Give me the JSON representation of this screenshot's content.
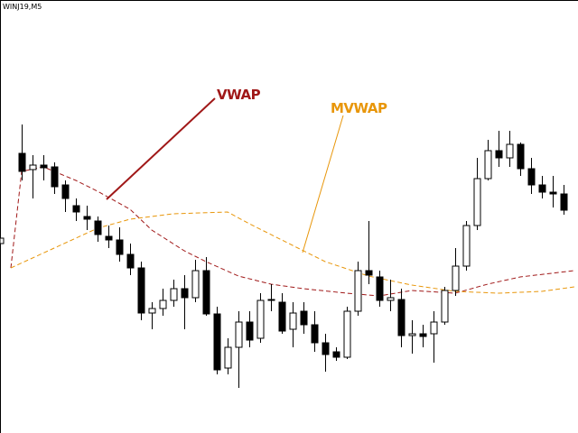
{
  "chart_data": {
    "type": "candlestick",
    "title": "WINJ19,M5",
    "open": [
      310,
      292,
      297,
      295,
      275,
      252,
      240,
      235,
      218,
      214,
      198,
      183,
      133,
      138,
      147,
      160,
      150,
      180,
      132,
      72,
      95,
      123,
      105,
      148,
      145,
      115,
      135,
      120,
      100,
      90,
      84,
      135,
      180,
      173,
      147,
      148,
      108,
      110,
      110,
      123,
      158,
      185,
      230,
      282,
      313,
      305,
      320,
      293,
      275,
      267,
      265
    ],
    "high": [
      342,
      308,
      308,
      300,
      280,
      260,
      252,
      240,
      230,
      228,
      210,
      190,
      145,
      160,
      170,
      175,
      192,
      195,
      140,
      105,
      135,
      135,
      155,
      165,
      155,
      145,
      145,
      135,
      110,
      95,
      140,
      190,
      235,
      180,
      170,
      160,
      125,
      120,
      135,
      162,
      205,
      235,
      305,
      325,
      335,
      335,
      322,
      305,
      285,
      285,
      275
    ],
    "low": [
      280,
      260,
      280,
      265,
      245,
      235,
      225,
      212,
      205,
      190,
      175,
      125,
      115,
      130,
      140,
      115,
      145,
      130,
      65,
      65,
      50,
      95,
      100,
      135,
      110,
      95,
      110,
      90,
      68,
      80,
      82,
      130,
      165,
      140,
      135,
      95,
      88,
      95,
      78,
      120,
      152,
      180,
      225,
      280,
      295,
      295,
      285,
      265,
      260,
      250,
      242
    ],
    "close": [
      290,
      297,
      294,
      273,
      260,
      245,
      237,
      220,
      214,
      198,
      183,
      133,
      138,
      147,
      160,
      150,
      180,
      132,
      70,
      95,
      123,
      103,
      147,
      148,
      113,
      133,
      120,
      100,
      87,
      84,
      135,
      180,
      175,
      147,
      150,
      108,
      110,
      107,
      123,
      158,
      185,
      230,
      282,
      313,
      305,
      320,
      293,
      275,
      267,
      265,
      247
    ],
    "up_color": "#ffffff",
    "down_color": "#000000",
    "wick_color": "#000000",
    "xlim": [
      -2,
      51.33
    ],
    "ylim": [
      0,
      480
    ],
    "series": [
      {
        "name": "VWAP",
        "color": "#a01818",
        "dashed": true,
        "x": [
          -1,
          0,
          2,
          5,
          7,
          10,
          12,
          15,
          17,
          20,
          23,
          26,
          30,
          33,
          36,
          40,
          43,
          46,
          51
        ],
        "values": [
          183,
          290,
          295,
          280,
          268,
          248,
          225,
          202,
          190,
          174,
          165,
          160,
          155,
          152,
          158,
          155,
          165,
          173,
          180
        ]
      },
      {
        "name": "MVWAP",
        "color": "#e8960a",
        "dashed": true,
        "x": [
          -1,
          3,
          7,
          10,
          14,
          19,
          21,
          25,
          28,
          32,
          36,
          40,
          44,
          48,
          51
        ],
        "values": [
          183,
          205,
          227,
          237,
          243,
          245,
          232,
          208,
          190,
          174,
          164,
          157,
          155,
          157,
          162
        ]
      }
    ]
  }
}
